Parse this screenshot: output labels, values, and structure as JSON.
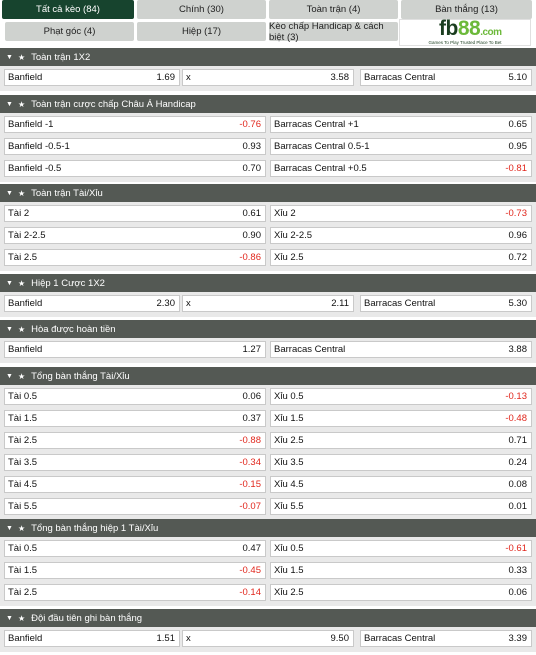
{
  "tabs": [
    {
      "label": "Tất cả kèo (84)",
      "active": true
    },
    {
      "label": "Chính (30)"
    },
    {
      "label": "Toàn trận (4)"
    },
    {
      "label": "Bàn thắng (13)"
    },
    {
      "label": "Phạt góc (4)"
    },
    {
      "label": "Hiệp (17)"
    },
    {
      "label": "Kèo chấp Handicap & cách biệt (3)"
    }
  ],
  "logo": {
    "fb": "fb",
    "n88": "88",
    "com": ".com",
    "tagline": "Games To Play Trusted Place To Bet"
  },
  "sections": [
    {
      "title": "Toàn trận 1X2",
      "cols": 3,
      "rows": [
        [
          {
            "label": "Banfield",
            "odd": "1.69"
          },
          {
            "label": "x",
            "odd": "3.58"
          },
          {
            "label": "Barracas Central",
            "odd": "5.10"
          }
        ]
      ]
    },
    {
      "title": "Toàn trận cược chấp Châu Á Handicap",
      "cols": 2,
      "rows": [
        [
          {
            "label": "Banfield -1",
            "odd": "-0.76"
          },
          {
            "label": "Barracas Central +1",
            "odd": "0.65"
          }
        ],
        [
          {
            "label": "Banfield -0.5-1",
            "odd": "0.93"
          },
          {
            "label": "Barracas Central 0.5-1",
            "odd": "0.95"
          }
        ],
        [
          {
            "label": "Banfield -0.5",
            "odd": "0.70"
          },
          {
            "label": "Barracas Central +0.5",
            "odd": "-0.81"
          }
        ]
      ]
    },
    {
      "title": "Toàn trận Tài/Xỉu",
      "cols": 2,
      "rows": [
        [
          {
            "label": "Tài 2",
            "odd": "0.61"
          },
          {
            "label": "Xỉu 2",
            "odd": "-0.73"
          }
        ],
        [
          {
            "label": "Tài 2-2.5",
            "odd": "0.90"
          },
          {
            "label": "Xỉu 2-2.5",
            "odd": "0.96"
          }
        ],
        [
          {
            "label": "Tài 2.5",
            "odd": "-0.86"
          },
          {
            "label": "Xỉu 2.5",
            "odd": "0.72"
          }
        ]
      ]
    },
    {
      "title": "Hiệp 1 Cược 1X2",
      "cols": 3,
      "rows": [
        [
          {
            "label": "Banfield",
            "odd": "2.30"
          },
          {
            "label": "x",
            "odd": "2.11"
          },
          {
            "label": "Barracas Central",
            "odd": "5.30"
          }
        ]
      ]
    },
    {
      "title": "Hòa được hoàn tiền",
      "cols": 2,
      "rows": [
        [
          {
            "label": "Banfield",
            "odd": "1.27"
          },
          {
            "label": "Barracas Central",
            "odd": "3.88"
          }
        ]
      ]
    },
    {
      "title": "Tổng bàn thắng Tài/Xỉu",
      "cols": 2,
      "rows": [
        [
          {
            "label": "Tài 0.5",
            "odd": "0.06"
          },
          {
            "label": "Xỉu 0.5",
            "odd": "-0.13"
          }
        ],
        [
          {
            "label": "Tài 1.5",
            "odd": "0.37"
          },
          {
            "label": "Xỉu 1.5",
            "odd": "-0.48"
          }
        ],
        [
          {
            "label": "Tài 2.5",
            "odd": "-0.88"
          },
          {
            "label": "Xỉu 2.5",
            "odd": "0.71"
          }
        ],
        [
          {
            "label": "Tài 3.5",
            "odd": "-0.34"
          },
          {
            "label": "Xỉu 3.5",
            "odd": "0.24"
          }
        ],
        [
          {
            "label": "Tài 4.5",
            "odd": "-0.15"
          },
          {
            "label": "Xỉu 4.5",
            "odd": "0.08"
          }
        ],
        [
          {
            "label": "Tài 5.5",
            "odd": "-0.07"
          },
          {
            "label": "Xỉu 5.5",
            "odd": "0.01"
          }
        ]
      ]
    },
    {
      "title": "Tổng bàn thắng hiệp 1 Tài/Xỉu",
      "cols": 2,
      "rows": [
        [
          {
            "label": "Tài 0.5",
            "odd": "0.47"
          },
          {
            "label": "Xỉu 0.5",
            "odd": "-0.61"
          }
        ],
        [
          {
            "label": "Tài 1.5",
            "odd": "-0.45"
          },
          {
            "label": "Xỉu 1.5",
            "odd": "0.33"
          }
        ],
        [
          {
            "label": "Tài 2.5",
            "odd": "-0.14"
          },
          {
            "label": "Xỉu 2.5",
            "odd": "0.06"
          }
        ]
      ]
    },
    {
      "title": "Đội đầu tiên ghi bàn thắng",
      "cols": 3,
      "rows": [
        [
          {
            "label": "Banfield",
            "odd": "1.51"
          },
          {
            "label": "x",
            "odd": "9.50"
          },
          {
            "label": "Barracas Central",
            "odd": "3.39"
          }
        ]
      ]
    }
  ],
  "colors": {
    "header_bg": "#545954",
    "tab_active": "#17442e",
    "tab_bg": "#cfd2cf",
    "negative": "#e1271d"
  }
}
